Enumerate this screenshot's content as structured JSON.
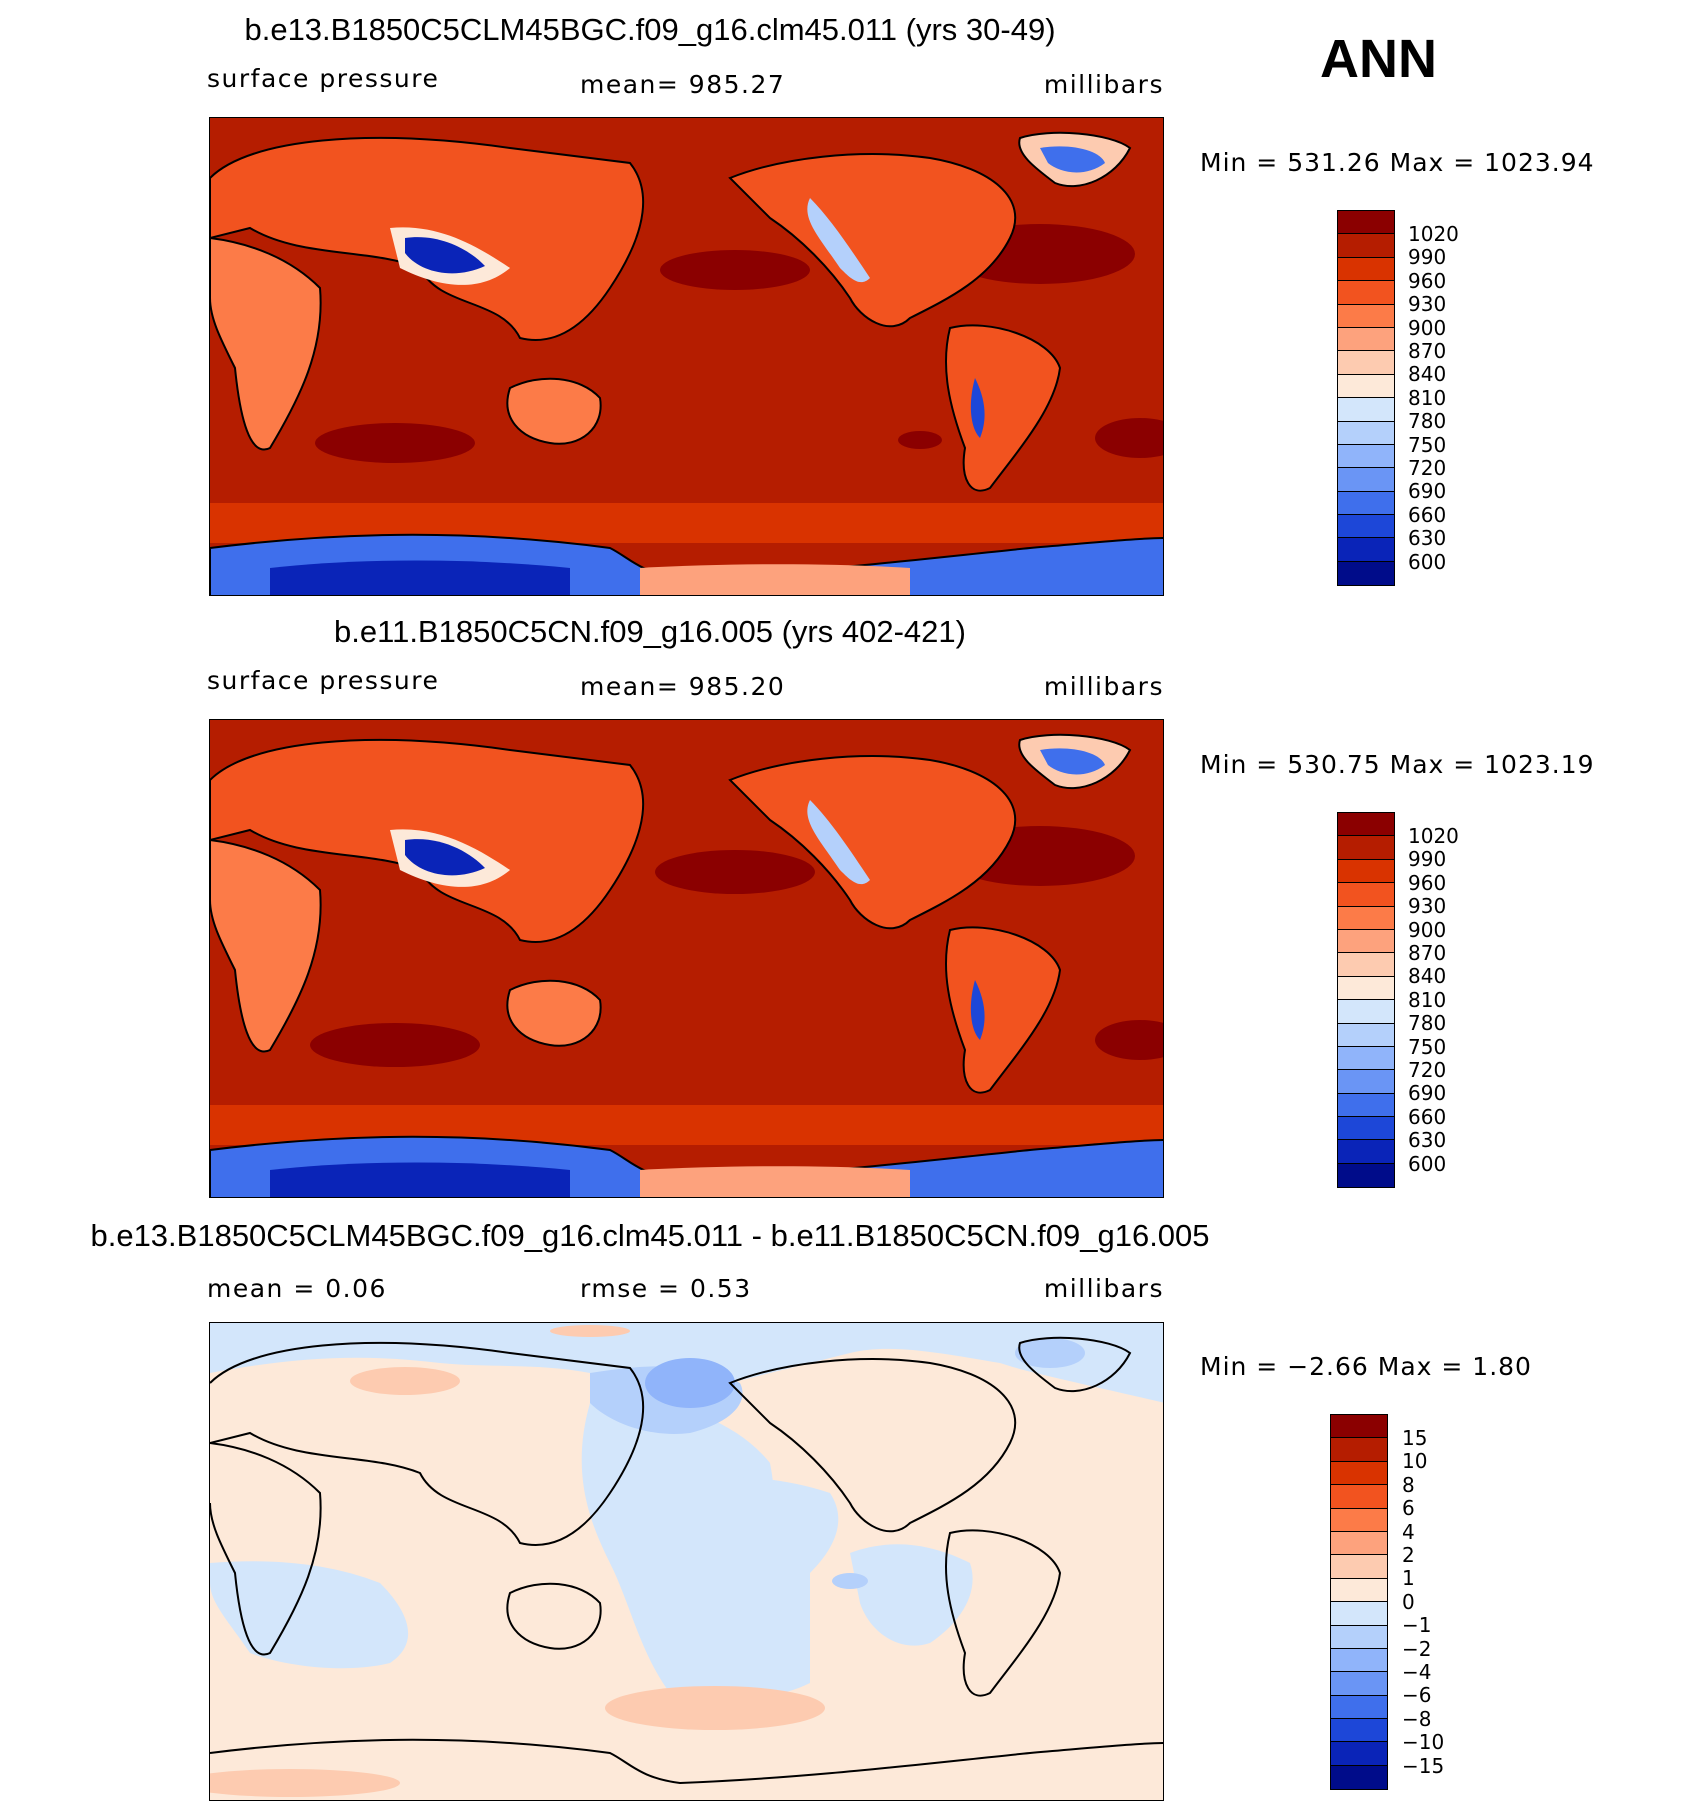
{
  "season": "ANN",
  "panels": [
    {
      "title": "b.e13.B1850C5CLM45BGC.f09_g16.clm45.011 (yrs 30-49)",
      "left_label": "surface  pressure",
      "mid_label": "mean=  985.27",
      "units": "millibars",
      "minmax": "Min  =  531.26  Max  =  1023.94",
      "levels": [
        "1020",
        "990",
        "960",
        "930",
        "900",
        "870",
        "840",
        "810",
        "780",
        "750",
        "720",
        "690",
        "660",
        "630",
        "600"
      ],
      "colors": [
        "#8b0000",
        "#b51d00",
        "#d93300",
        "#f2531f",
        "#fc7b48",
        "#fda27d",
        "#fdcbb0",
        "#fde9d9",
        "#d3e6fb",
        "#b4d0fb",
        "#90b4fa",
        "#6a95f5",
        "#3f6fec",
        "#1d47d8",
        "#0a24b8",
        "#000c8a"
      ],
      "ocean_color": "#b51d00"
    },
    {
      "title": "b.e11.B1850C5CN.f09_g16.005 (yrs 402-421)",
      "left_label": "surface  pressure",
      "mid_label": "mean=  985.20",
      "units": "millibars",
      "minmax": "Min  =  530.75  Max  =  1023.19",
      "levels": [
        "1020",
        "990",
        "960",
        "930",
        "900",
        "870",
        "840",
        "810",
        "780",
        "750",
        "720",
        "690",
        "660",
        "630",
        "600"
      ],
      "colors": [
        "#8b0000",
        "#b51d00",
        "#d93300",
        "#f2531f",
        "#fc7b48",
        "#fda27d",
        "#fdcbb0",
        "#fde9d9",
        "#d3e6fb",
        "#b4d0fb",
        "#90b4fa",
        "#6a95f5",
        "#3f6fec",
        "#1d47d8",
        "#0a24b8",
        "#000c8a"
      ],
      "ocean_color": "#b51d00"
    },
    {
      "title": "b.e13.B1850C5CLM45BGC.f09_g16.clm45.011 - b.e11.B1850C5CN.f09_g16.005",
      "left_label": "mean  =     0.06",
      "mid_label": "rmse  =     0.53",
      "units": "millibars",
      "minmax": "Min  =    −2.66  Max  =      1.80",
      "levels": [
        "15",
        "10",
        "8",
        "6",
        "4",
        "2",
        "1",
        "0",
        "−1",
        "−2",
        "−4",
        "−6",
        "−8",
        "−10",
        "−15"
      ],
      "colors": [
        "#8b0000",
        "#b51d00",
        "#d93300",
        "#f2531f",
        "#fc7b48",
        "#fda27d",
        "#fdcbb0",
        "#fde9d9",
        "#d3e6fb",
        "#b4d0fb",
        "#90b4fa",
        "#6a95f5",
        "#3f6fec",
        "#1d47d8",
        "#0a24b8",
        "#000c8a"
      ],
      "ocean_color": "#fde9d9"
    }
  ],
  "chart_data": [
    {
      "type": "heatmap",
      "title": "b.e13.B1850C5CLM45BGC.f09_g16.clm45.011 (yrs 30-49)",
      "variable": "surface pressure",
      "units": "millibars",
      "mean": 985.27,
      "min": 531.26,
      "max": 1023.94,
      "contour_levels": [
        600,
        630,
        660,
        690,
        720,
        750,
        780,
        810,
        840,
        870,
        900,
        930,
        960,
        990,
        1020
      ]
    },
    {
      "type": "heatmap",
      "title": "b.e11.B1850C5CN.f09_g16.005 (yrs 402-421)",
      "variable": "surface pressure",
      "units": "millibars",
      "mean": 985.2,
      "min": 530.75,
      "max": 1023.19,
      "contour_levels": [
        600,
        630,
        660,
        690,
        720,
        750,
        780,
        810,
        840,
        870,
        900,
        930,
        960,
        990,
        1020
      ]
    },
    {
      "type": "heatmap",
      "title": "b.e13.B1850C5CLM45BGC.f09_g16.clm45.011 - b.e11.B1850C5CN.f09_g16.005",
      "units": "millibars",
      "mean": 0.06,
      "rmse": 0.53,
      "min": -2.66,
      "max": 1.8,
      "contour_levels": [
        -15,
        -10,
        -8,
        -6,
        -4,
        -2,
        -1,
        0,
        1,
        2,
        4,
        6,
        8,
        10,
        15
      ]
    }
  ]
}
